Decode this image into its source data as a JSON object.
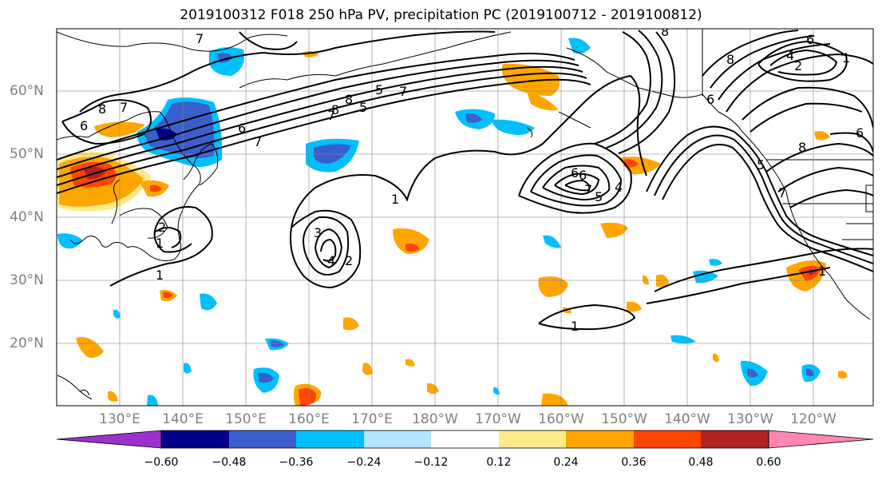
{
  "title": "2019100312 F018 250 hPa PV, precipitation PC (2019100712 - 2019100812)",
  "lat_labels": [
    "60°N",
    "50°N",
    "40°N",
    "30°N",
    "20°N"
  ],
  "lon_labels": [
    "130°E",
    "140°E",
    "150°E",
    "160°E",
    "170°E",
    "180°W",
    "170°W",
    "160°W",
    "150°W",
    "140°W",
    "130°W",
    "120°W"
  ],
  "colorbar": {
    "ticks": [
      "−0.60",
      "−0.48",
      "−0.36",
      "−0.24",
      "−0.12",
      "0.12",
      "0.24",
      "0.36",
      "0.48",
      "0.60"
    ],
    "colors": [
      "#9932cc",
      "#00008b",
      "#3a5fcd",
      "#00bfff",
      "#b2e3ff",
      "#ffffff",
      "#ffe98a",
      "#ffa500",
      "#ff4500",
      "#b22222",
      "#ff87b0"
    ]
  },
  "contour_labels": {
    "c1": "7",
    "c2": "8",
    "c3": "7",
    "c4": "6",
    "c5": "8",
    "c6": "7",
    "c7": "6",
    "c8": "7",
    "c9": "5",
    "c10": "8",
    "c11": "7",
    "c12": "5",
    "c13": "1",
    "c14": "6",
    "c15": "1",
    "c16": "2",
    "c17": "1",
    "c18": "3",
    "c19": "4",
    "c20": "2",
    "c21": "1",
    "c22": "6",
    "c23": "7",
    "c24": "5",
    "c25": "4",
    "c26": "8",
    "c27": "6",
    "c28": "4",
    "c29": "2",
    "c30": "1",
    "c31": "8",
    "c32": "6",
    "c33": "5",
    "c34": "7",
    "c35": "6",
    "c36": "8",
    "c37": "1"
  }
}
